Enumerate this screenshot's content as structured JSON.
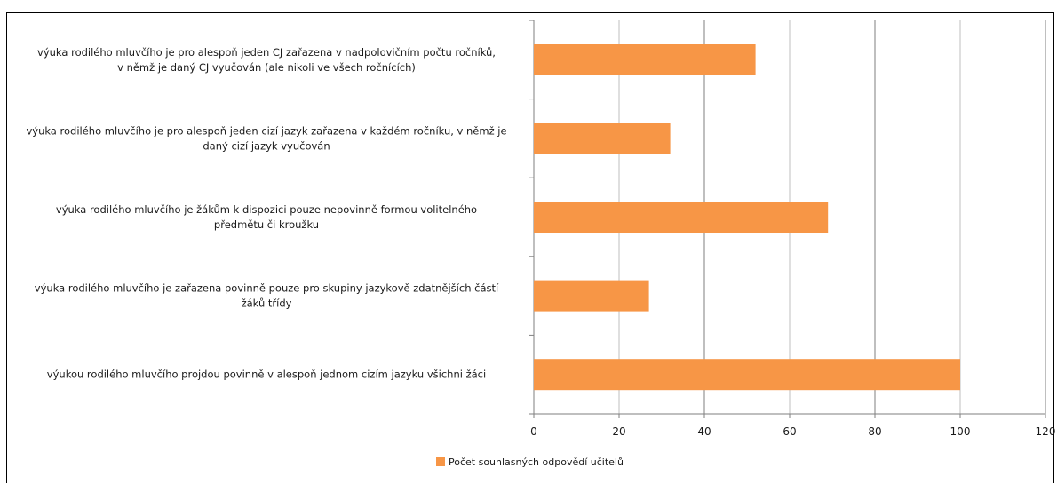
{
  "chart_data": {
    "type": "bar",
    "orientation": "horizontal",
    "categories": [
      [
        "výuka rodilého mluvčího je pro alespoň jeden CJ zařazena v nadpolovičním počtu ročníků,",
        "v němž je daný CJ vyučován (ale nikoli ve všech ročnících)"
      ],
      [
        "výuka rodilého mluvčího je pro alespoň jeden cizí jazyk zařazena v každém ročníku, v němž je",
        "daný cizí jazyk vyučován"
      ],
      [
        "výuka rodilého mluvčího je žákům k dispozici pouze nepovinně formou volitelného",
        "předmětu či kroužku"
      ],
      [
        "výuka rodilého mluvčího je zařazena povinně pouze pro skupiny jazykově zdatnějších částí",
        "žáků třídy"
      ],
      [
        "výukou rodilého mluvčího projdou povinně v alespoň jednom cizím jazyku všichni žáci"
      ]
    ],
    "series": [
      {
        "name": "Počet souhlasných odpovědí učitelů",
        "values": [
          52,
          32,
          69,
          27,
          100
        ],
        "color": "#F79646"
      }
    ],
    "xlim": [
      0,
      120
    ],
    "ticks": [
      0,
      20,
      40,
      60,
      80,
      100,
      120
    ],
    "tick_labels": [
      "0",
      "20",
      "40",
      "60",
      "80",
      "100",
      "120"
    ],
    "grid": true,
    "legend_position": "bottom"
  }
}
